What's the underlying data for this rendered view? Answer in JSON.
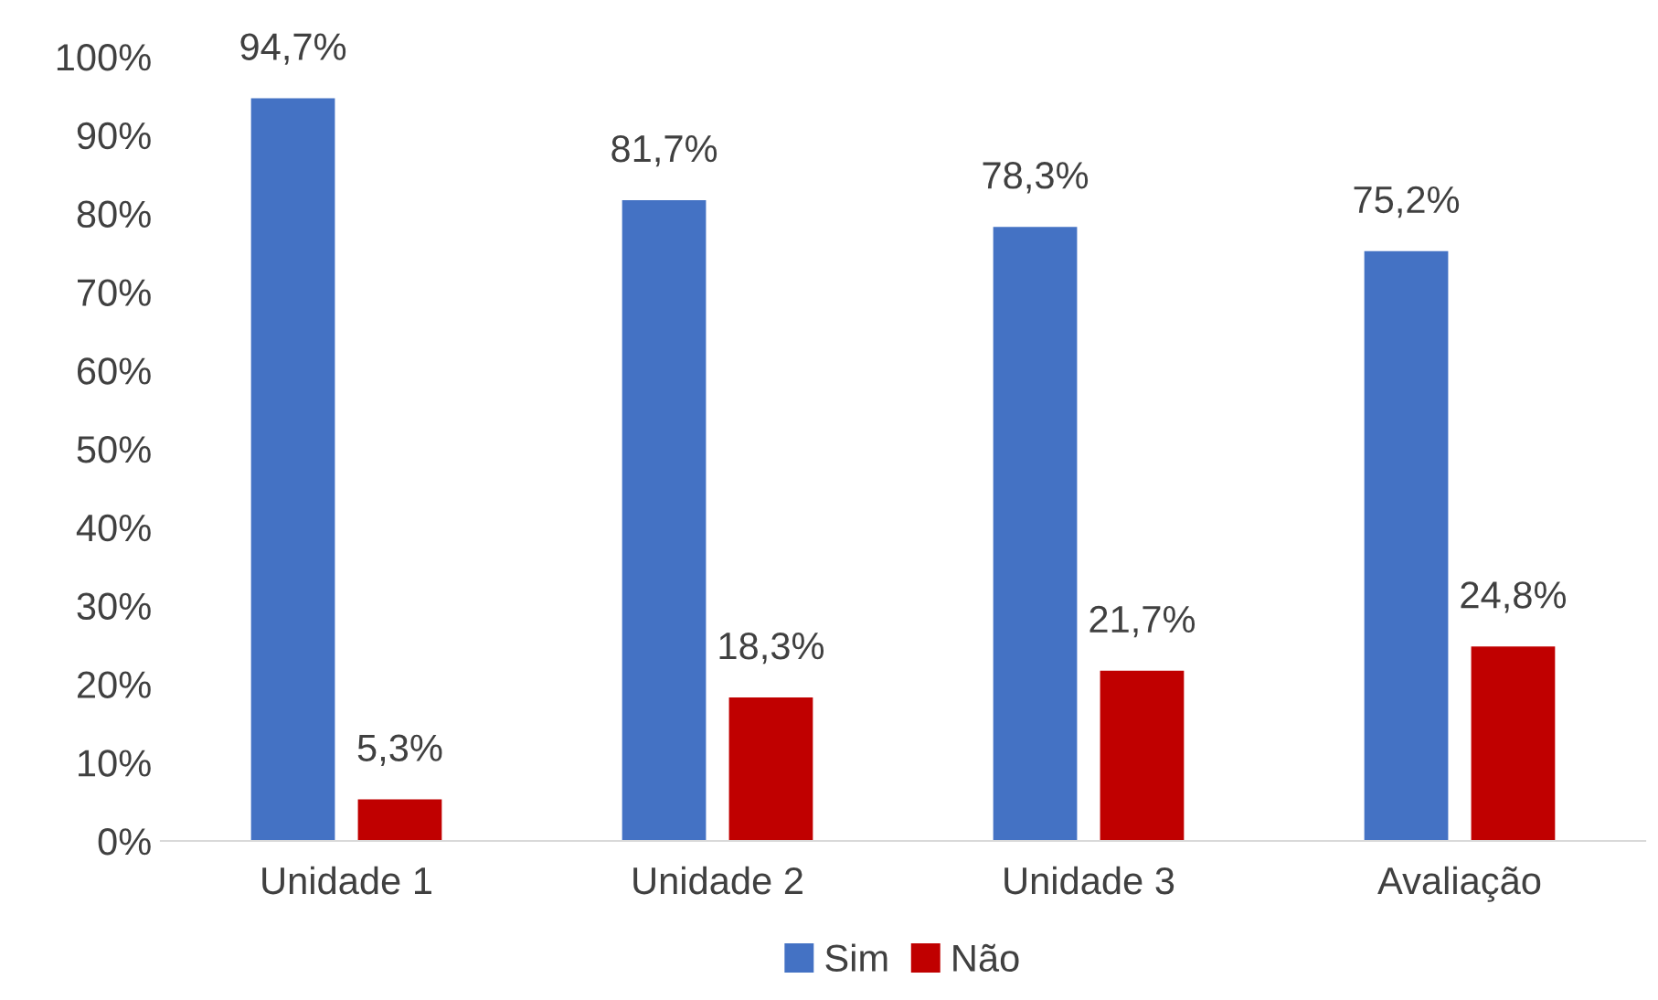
{
  "chart_data": {
    "type": "bar",
    "categories": [
      "Unidade 1",
      "Unidade 2",
      "Unidade 3",
      "Avaliação"
    ],
    "series": [
      {
        "name": "Sim",
        "color": "#4472c4",
        "values": [
          94.7,
          81.7,
          78.3,
          75.2
        ],
        "value_labels": [
          "94,7%",
          "81,7%",
          "78,3%",
          "75,2%"
        ]
      },
      {
        "name": "Não",
        "color": "#c00000",
        "values": [
          5.3,
          18.3,
          21.7,
          24.8
        ],
        "value_labels": [
          "5,3%",
          "18,3%",
          "21,7%",
          "24,8%"
        ]
      }
    ],
    "ylim": [
      0,
      100
    ],
    "yticks": [
      {
        "value": 0,
        "label": "0%"
      },
      {
        "value": 10,
        "label": "10%"
      },
      {
        "value": 20,
        "label": "20%"
      },
      {
        "value": 30,
        "label": "30%"
      },
      {
        "value": 40,
        "label": "40%"
      },
      {
        "value": 50,
        "label": "50%"
      },
      {
        "value": 60,
        "label": "60%"
      },
      {
        "value": 70,
        "label": "70%"
      },
      {
        "value": 80,
        "label": "80%"
      },
      {
        "value": 90,
        "label": "90%"
      },
      {
        "value": 100,
        "label": "100%"
      }
    ],
    "grid": false,
    "legend": "bottom"
  }
}
